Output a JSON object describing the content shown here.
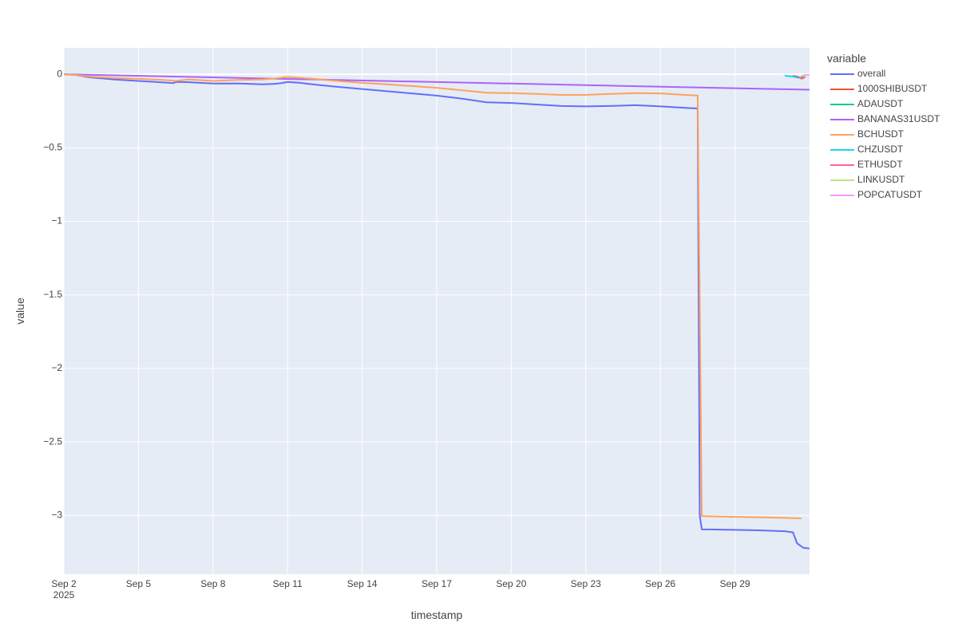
{
  "chart_data": {
    "type": "line",
    "title": "",
    "xlabel": "timestamp",
    "ylabel": "value",
    "xlim": [
      "2025-09-02",
      "2025-10-02"
    ],
    "ylim": [
      -3.4,
      0.18
    ],
    "grid": true,
    "background": "#e5ecf6",
    "legend": {
      "title": "variable",
      "placement": "right"
    },
    "x_ticks": [
      {
        "value": "2025-09-02",
        "label": "Sep 2",
        "sublabel": "2025"
      },
      {
        "value": "2025-09-05",
        "label": "Sep 5"
      },
      {
        "value": "2025-09-08",
        "label": "Sep 8"
      },
      {
        "value": "2025-09-11",
        "label": "Sep 11"
      },
      {
        "value": "2025-09-14",
        "label": "Sep 14"
      },
      {
        "value": "2025-09-17",
        "label": "Sep 17"
      },
      {
        "value": "2025-09-20",
        "label": "Sep 20"
      },
      {
        "value": "2025-09-23",
        "label": "Sep 23"
      },
      {
        "value": "2025-09-26",
        "label": "Sep 26"
      },
      {
        "value": "2025-09-29",
        "label": "Sep 29"
      }
    ],
    "y_ticks": [
      {
        "value": 0,
        "label": "0"
      },
      {
        "value": -0.5,
        "label": "−0.5"
      },
      {
        "value": -1,
        "label": "−1"
      },
      {
        "value": -1.5,
        "label": "−1.5"
      },
      {
        "value": -2,
        "label": "−2"
      },
      {
        "value": -2.5,
        "label": "−2.5"
      },
      {
        "value": -3,
        "label": "−3"
      }
    ],
    "series": [
      {
        "name": "overall",
        "color": "#636efa",
        "points": [
          [
            "2025-09-02T00:00",
            0
          ],
          [
            "2025-09-02T12:00",
            -0.005
          ],
          [
            "2025-09-03T00:00",
            -0.02
          ],
          [
            "2025-09-04T00:00",
            -0.035
          ],
          [
            "2025-09-05T00:00",
            -0.045
          ],
          [
            "2025-09-05T12:00",
            -0.05
          ],
          [
            "2025-09-06T00:00",
            -0.055
          ],
          [
            "2025-09-06T10:00",
            -0.06
          ],
          [
            "2025-09-06T12:00",
            -0.052
          ],
          [
            "2025-09-07T00:00",
            -0.053
          ],
          [
            "2025-09-08T00:00",
            -0.063
          ],
          [
            "2025-09-09T00:00",
            -0.062
          ],
          [
            "2025-09-10T00:00",
            -0.068
          ],
          [
            "2025-09-10T12:00",
            -0.065
          ],
          [
            "2025-09-10T18:00",
            -0.06
          ],
          [
            "2025-09-11T00:00",
            -0.052
          ],
          [
            "2025-09-11T12:00",
            -0.058
          ],
          [
            "2025-09-12T00:00",
            -0.068
          ],
          [
            "2025-09-13T00:00",
            -0.085
          ],
          [
            "2025-09-14T00:00",
            -0.1
          ],
          [
            "2025-09-15T00:00",
            -0.115
          ],
          [
            "2025-09-16T00:00",
            -0.13
          ],
          [
            "2025-09-17T00:00",
            -0.145
          ],
          [
            "2025-09-18T00:00",
            -0.165
          ],
          [
            "2025-09-19T00:00",
            -0.19
          ],
          [
            "2025-09-20T00:00",
            -0.195
          ],
          [
            "2025-09-21T00:00",
            -0.205
          ],
          [
            "2025-09-22T00:00",
            -0.215
          ],
          [
            "2025-09-23T00:00",
            -0.218
          ],
          [
            "2025-09-24T00:00",
            -0.215
          ],
          [
            "2025-09-25T00:00",
            -0.21
          ],
          [
            "2025-09-26T00:00",
            -0.218
          ],
          [
            "2025-09-27T00:00",
            -0.228
          ],
          [
            "2025-09-27T12:00",
            -0.232
          ],
          [
            "2025-09-27T14:00",
            -3.0
          ],
          [
            "2025-09-27T16:00",
            -3.095
          ],
          [
            "2025-09-29T00:00",
            -3.098
          ],
          [
            "2025-09-30T00:00",
            -3.102
          ],
          [
            "2025-10-01T00:00",
            -3.108
          ],
          [
            "2025-10-01T08:00",
            -3.115
          ],
          [
            "2025-10-01T12:00",
            -3.19
          ],
          [
            "2025-10-01T18:00",
            -3.22
          ],
          [
            "2025-10-02T00:00",
            -3.225
          ]
        ]
      },
      {
        "name": "1000SHIBUSDT",
        "color": "#ef553b",
        "points": [
          [
            "2025-10-01T08:00",
            -0.01
          ],
          [
            "2025-10-01T14:00",
            -0.02
          ],
          [
            "2025-10-01T18:00",
            -0.03
          ]
        ]
      },
      {
        "name": "ADAUSDT",
        "color": "#00cc96",
        "points": [
          [
            "2025-10-01T16:00",
            -0.015
          ],
          [
            "2025-10-01T20:00",
            -0.02
          ]
        ]
      },
      {
        "name": "BANANAS31USDT",
        "color": "#ab63fa",
        "points": [
          [
            "2025-09-02T00:00",
            0
          ],
          [
            "2025-10-02T00:00",
            -0.105
          ]
        ]
      },
      {
        "name": "BCHUSDT",
        "color": "#ffa15a",
        "points": [
          [
            "2025-09-02T00:00",
            0
          ],
          [
            "2025-09-02T12:00",
            -0.005
          ],
          [
            "2025-09-03T00:00",
            -0.015
          ],
          [
            "2025-09-04T00:00",
            -0.025
          ],
          [
            "2025-09-05T00:00",
            -0.03
          ],
          [
            "2025-09-06T00:00",
            -0.038
          ],
          [
            "2025-09-06T12:00",
            -0.045
          ],
          [
            "2025-09-07T00:00",
            -0.035
          ],
          [
            "2025-09-08T00:00",
            -0.045
          ],
          [
            "2025-09-09T00:00",
            -0.038
          ],
          [
            "2025-09-10T00:00",
            -0.035
          ],
          [
            "2025-09-10T12:00",
            -0.028
          ],
          [
            "2025-09-11T00:00",
            -0.018
          ],
          [
            "2025-09-12T00:00",
            -0.03
          ],
          [
            "2025-09-13T00:00",
            -0.045
          ],
          [
            "2025-09-14T00:00",
            -0.058
          ],
          [
            "2025-09-15T00:00",
            -0.068
          ],
          [
            "2025-09-16T00:00",
            -0.08
          ],
          [
            "2025-09-17T00:00",
            -0.092
          ],
          [
            "2025-09-18T00:00",
            -0.108
          ],
          [
            "2025-09-19T00:00",
            -0.125
          ],
          [
            "2025-09-20T00:00",
            -0.128
          ],
          [
            "2025-09-21T00:00",
            -0.133
          ],
          [
            "2025-09-22T00:00",
            -0.14
          ],
          [
            "2025-09-23T00:00",
            -0.14
          ],
          [
            "2025-09-24T00:00",
            -0.133
          ],
          [
            "2025-09-25T00:00",
            -0.128
          ],
          [
            "2025-09-26T00:00",
            -0.13
          ],
          [
            "2025-09-27T00:00",
            -0.14
          ],
          [
            "2025-09-27T12:00",
            -0.145
          ],
          [
            "2025-09-27T16:00",
            -3.005
          ],
          [
            "2025-09-29T00:00",
            -3.01
          ],
          [
            "2025-09-30T00:00",
            -3.013
          ],
          [
            "2025-10-01T00:00",
            -3.017
          ],
          [
            "2025-10-01T16:00",
            -3.02
          ]
        ]
      },
      {
        "name": "CHZUSDT",
        "color": "#19d3f3",
        "points": [
          [
            "2025-10-01T00:00",
            -0.01
          ],
          [
            "2025-10-01T08:00",
            -0.015
          ],
          [
            "2025-10-01T14:00",
            -0.025
          ]
        ]
      },
      {
        "name": "ETHUSDT",
        "color": "#ff6692",
        "points": [
          [
            "2025-10-01T14:00",
            -0.02
          ],
          [
            "2025-10-01T16:00",
            -0.03
          ],
          [
            "2025-10-01T20:00",
            -0.02
          ]
        ]
      },
      {
        "name": "LINKUSDT",
        "color": "#b6e880",
        "points": [
          [
            "2025-10-01T16:00",
            -0.008
          ],
          [
            "2025-10-01T20:00",
            -0.012
          ]
        ]
      },
      {
        "name": "POPCATUSDT",
        "color": "#ff97ff",
        "points": [
          [
            "2025-10-01T18:00",
            -0.005
          ],
          [
            "2025-10-02T00:00",
            -0.005
          ]
        ]
      }
    ]
  }
}
